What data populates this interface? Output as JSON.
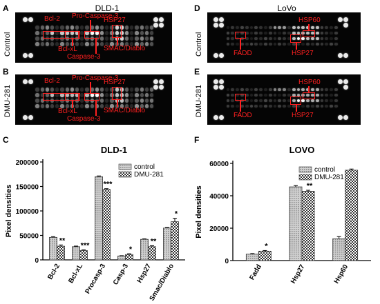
{
  "panels": {
    "A": {
      "letter": "A",
      "row_label": "Control"
    },
    "B": {
      "letter": "B",
      "row_label": "DMU-281"
    },
    "D": {
      "letter": "D",
      "row_label": "Control"
    },
    "E": {
      "letter": "E",
      "row_label": "DMU-281"
    },
    "C": {
      "letter": "C"
    },
    "F": {
      "letter": "F"
    }
  },
  "blot_titles": {
    "dld1": "DLD-1",
    "lovo": "LoVo"
  },
  "annotations": {
    "A": [
      "Bcl-2",
      "Pro-Caspase-3",
      "HSP27",
      "Bcl-xL",
      "SMAC/Diablo",
      "Caspase-3"
    ],
    "B": [
      "Bcl-2",
      "Pro-Caspase-3",
      "HSP27",
      "Bcl-xL",
      "SMAC/Diablo",
      "Caspase-3"
    ],
    "D": [
      "FADD",
      "HSP60",
      "HSP27"
    ],
    "E": [
      "FADD",
      "HSP60",
      "HSP27"
    ]
  },
  "colors": {
    "annotation": "#ff2020",
    "blot_background": "#050505"
  },
  "chart_data": [
    {
      "type": "bar",
      "title": "DLD-1",
      "xlabel": "",
      "ylabel": "Pixel densities",
      "categories": [
        "Bcl-2",
        "Bcl-xL",
        "Procasp-3",
        "Casp-3",
        "Hsp27",
        "Smac/Diablo"
      ],
      "series": [
        {
          "name": "control",
          "values": [
            46000,
            27000,
            170000,
            8000,
            42000,
            65000
          ],
          "errors": [
            1500,
            1200,
            1500,
            600,
            1000,
            1200
          ]
        },
        {
          "name": "DMU-281",
          "values": [
            28000,
            19000,
            144000,
            11000,
            27000,
            78000
          ],
          "errors": [
            2500,
            1500,
            1500,
            1500,
            2000,
            7000
          ]
        }
      ],
      "significance": [
        [
          "",
          "**"
        ],
        [
          "",
          "***"
        ],
        [
          "",
          "***"
        ],
        [
          "",
          "*"
        ],
        [
          "",
          "**"
        ],
        [
          "",
          "*"
        ]
      ],
      "ylim": [
        0,
        200000
      ],
      "yticks": [
        "0",
        "50000",
        "100000",
        "150000",
        "200000"
      ],
      "legend_position": "top-right"
    },
    {
      "type": "bar",
      "title": "LOVO",
      "xlabel": "",
      "ylabel": "Pixel densities",
      "categories": [
        "Fadd",
        "Hsp27",
        "Hsp60"
      ],
      "series": [
        {
          "name": "control",
          "values": [
            4000,
            45500,
            13500
          ],
          "errors": [
            300,
            800,
            1300
          ]
        },
        {
          "name": "DMU-281",
          "values": [
            5800,
            42800,
            55800
          ],
          "errors": [
            400,
            600,
            700
          ]
        }
      ],
      "significance": [
        [
          "",
          "*"
        ],
        [
          "",
          "**"
        ],
        [
          "",
          ""
        ]
      ],
      "ylim": [
        0,
        60000
      ],
      "yticks": [
        "0",
        "20000",
        "40000",
        "60000"
      ],
      "legend_position": "top-right"
    }
  ]
}
